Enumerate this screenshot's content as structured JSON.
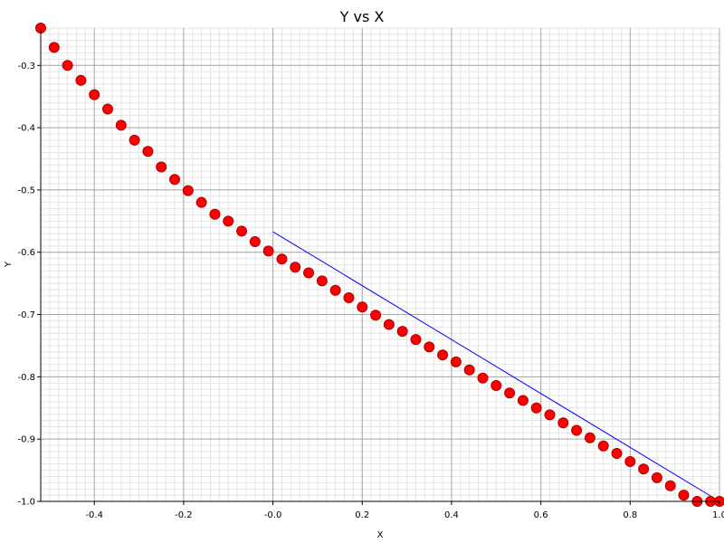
{
  "chart_data": {
    "type": "scatter",
    "title": "Y vs X",
    "xlabel": "X",
    "ylabel": "Y",
    "xlim": [
      -0.52,
      1.0
    ],
    "ylim": [
      -1.0,
      -0.24
    ],
    "grid": true,
    "x_ticks": [
      -0.4,
      -0.2,
      0.0,
      0.2,
      0.4,
      0.6,
      0.8,
      1.0
    ],
    "x_tick_labels": [
      "-0.4",
      "-0.2",
      "-0.0",
      "0.2",
      "0.4",
      "0.6",
      "0.8",
      "1.0"
    ],
    "y_ticks": [
      -1.0,
      -0.9,
      -0.8,
      -0.7,
      -0.6,
      -0.5,
      -0.4,
      -0.3
    ],
    "y_tick_labels": [
      "-1.0",
      "-0.9",
      "-0.8",
      "-0.7",
      "-0.6",
      "-0.5",
      "-0.4",
      "-0.3"
    ],
    "series": [
      {
        "kind": "scatter",
        "color": "#ff0000",
        "x": [
          -0.52,
          -0.49,
          -0.46,
          -0.43,
          -0.4,
          -0.37,
          -0.34,
          -0.31,
          -0.28,
          -0.25,
          -0.22,
          -0.19,
          -0.16,
          -0.13,
          -0.1,
          -0.07,
          -0.04,
          -0.01,
          0.02,
          0.05,
          0.08,
          0.11,
          0.14,
          0.17,
          0.2,
          0.23,
          0.26,
          0.29,
          0.32,
          0.35,
          0.38,
          0.41,
          0.44,
          0.47,
          0.5,
          0.53,
          0.56,
          0.59,
          0.62,
          0.65,
          0.68,
          0.71,
          0.74,
          0.77,
          0.8,
          0.83,
          0.86,
          0.89,
          0.92,
          0.95,
          0.98,
          1.0
        ],
        "y": [
          -0.24,
          -0.271,
          -0.3,
          -0.324,
          -0.347,
          -0.37,
          -0.396,
          -0.42,
          -0.438,
          -0.463,
          -0.483,
          -0.501,
          -0.52,
          -0.539,
          -0.55,
          -0.566,
          -0.583,
          -0.598,
          -0.611,
          -0.624,
          -0.633,
          -0.646,
          -0.661,
          -0.673,
          -0.688,
          -0.701,
          -0.716,
          -0.727,
          -0.74,
          -0.752,
          -0.765,
          -0.776,
          -0.789,
          -0.802,
          -0.814,
          -0.826,
          -0.838,
          -0.85,
          -0.861,
          -0.874,
          -0.886,
          -0.898,
          -0.911,
          -0.923,
          -0.936,
          -0.948,
          -0.962,
          -0.975,
          -0.99,
          -1.0,
          -1.0,
          -1.0
        ]
      },
      {
        "kind": "line",
        "color": "#0000ff",
        "x": [
          0.0,
          1.0
        ],
        "y": [
          -0.567,
          -1.0
        ]
      }
    ]
  }
}
